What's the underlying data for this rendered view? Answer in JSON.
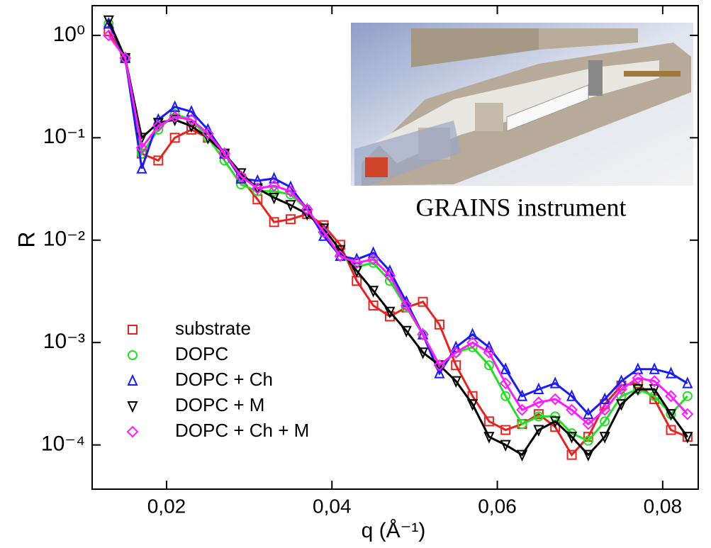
{
  "chart_data": {
    "type": "line",
    "xlabel": "q (Å⁻¹)",
    "ylabel": "R",
    "annotation": "GRAINS instrument",
    "log_y": true,
    "legend": "lower left",
    "xlim": [
      0.011,
      0.0843
    ],
    "ylim": [
      3.7e-05,
      1.95
    ],
    "xticks": [
      {
        "value": 0.02,
        "label": "0,02"
      },
      {
        "value": 0.04,
        "label": "0,04"
      },
      {
        "value": 0.06,
        "label": "0,06"
      },
      {
        "value": 0.08,
        "label": "0,08"
      }
    ],
    "yticks": [
      {
        "value": 1,
        "label": "10⁰"
      },
      {
        "value": 0.1,
        "label": "10⁻¹"
      },
      {
        "value": 0.01,
        "label": "10⁻²"
      },
      {
        "value": 0.001,
        "label": "10⁻³"
      },
      {
        "value": 0.0001,
        "label": "10⁻⁴"
      }
    ],
    "x": [
      0.013,
      0.015,
      0.017,
      0.019,
      0.021,
      0.023,
      0.025,
      0.027,
      0.029,
      0.031,
      0.033,
      0.035,
      0.037,
      0.039,
      0.041,
      0.043,
      0.045,
      0.047,
      0.049,
      0.051,
      0.053,
      0.055,
      0.057,
      0.059,
      0.061,
      0.063,
      0.065,
      0.067,
      0.069,
      0.071,
      0.073,
      0.075,
      0.077,
      0.079,
      0.081,
      0.083
    ],
    "series": [
      {
        "name": "substrate",
        "color": "#e8231f",
        "marker": "square",
        "values": [
          1.1,
          0.6,
          0.07,
          0.06,
          0.1,
          0.12,
          0.1,
          0.07,
          0.04,
          0.025,
          0.015,
          0.016,
          0.018,
          0.014,
          0.009,
          0.004,
          0.0023,
          0.0018,
          0.0022,
          0.0025,
          0.0015,
          0.0006,
          0.0003,
          0.00017,
          0.00014,
          0.00016,
          0.0002,
          0.00015,
          8e-05,
          0.00012,
          0.00025,
          0.00038,
          0.0004,
          0.00028,
          0.00014,
          0.00012
        ]
      },
      {
        "name": "DOPC",
        "color": "#22e022",
        "marker": "circle",
        "values": [
          1.3,
          0.6,
          0.07,
          0.12,
          0.17,
          0.15,
          0.1,
          0.06,
          0.035,
          0.03,
          0.03,
          0.028,
          0.02,
          0.012,
          0.007,
          0.0055,
          0.006,
          0.004,
          0.0022,
          0.0012,
          0.0006,
          0.0008,
          0.0009,
          0.0006,
          0.0003,
          0.00016,
          0.00019,
          0.00019,
          0.00013,
          0.00011,
          0.00017,
          0.0003,
          0.00035,
          0.0003,
          0.0002,
          0.0003
        ]
      },
      {
        "name": "DOPC + Ch",
        "color": "#1a1aff",
        "marker": "triangle-up",
        "values": [
          1.3,
          0.6,
          0.05,
          0.15,
          0.2,
          0.18,
          0.12,
          0.07,
          0.04,
          0.038,
          0.04,
          0.033,
          0.02,
          0.011,
          0.007,
          0.0065,
          0.0075,
          0.005,
          0.0025,
          0.0012,
          0.0005,
          0.0009,
          0.0012,
          0.0009,
          0.00055,
          0.0003,
          0.00035,
          0.0004,
          0.0003,
          0.0002,
          0.00028,
          0.00042,
          0.00055,
          0.00055,
          0.0005,
          0.0004
        ]
      },
      {
        "name": "DOPC + M",
        "color": "#000000",
        "marker": "triangle-down",
        "values": [
          1.4,
          0.6,
          0.1,
          0.14,
          0.15,
          0.13,
          0.1,
          0.07,
          0.045,
          0.032,
          0.026,
          0.022,
          0.018,
          0.013,
          0.008,
          0.005,
          0.0032,
          0.002,
          0.0013,
          0.0008,
          0.0006,
          0.00042,
          0.00025,
          0.00012,
          0.0001,
          8e-05,
          0.00014,
          0.00017,
          0.00012,
          8e-05,
          0.00012,
          0.00025,
          0.00035,
          0.00035,
          0.0002,
          0.00012
        ]
      },
      {
        "name": "DOPC + Ch + M",
        "color": "#ff1aff",
        "marker": "diamond",
        "values": [
          1.0,
          0.6,
          0.08,
          0.13,
          0.16,
          0.15,
          0.11,
          0.07,
          0.042,
          0.032,
          0.034,
          0.03,
          0.02,
          0.012,
          0.007,
          0.006,
          0.0065,
          0.0045,
          0.0023,
          0.0012,
          0.0006,
          0.0008,
          0.001,
          0.0008,
          0.0004,
          0.00022,
          0.00026,
          0.00028,
          0.00022,
          0.00016,
          0.00022,
          0.00035,
          0.00045,
          0.00042,
          0.0003,
          0.0002
        ]
      }
    ]
  }
}
